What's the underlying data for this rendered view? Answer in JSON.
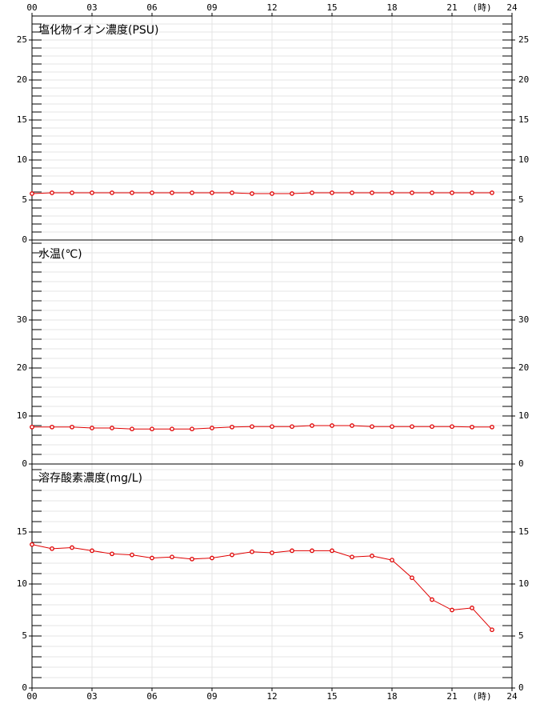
{
  "x_axis": {
    "xlim": [
      0,
      24
    ],
    "unit": "(時)",
    "xticks": [
      {
        "value": 0,
        "label": "00"
      },
      {
        "value": 3,
        "label": "03"
      },
      {
        "value": 6,
        "label": "06"
      },
      {
        "value": 9,
        "label": "09"
      },
      12,
      15,
      18,
      21,
      24
    ]
  },
  "chart_data": [
    {
      "type": "line",
      "title": "塩化物イオン濃度(PSU)",
      "color": "#e00000",
      "x": [
        0,
        1,
        2,
        3,
        4,
        5,
        6,
        7,
        8,
        9,
        10,
        11,
        12,
        13,
        14,
        15,
        16,
        17,
        18,
        19,
        20,
        21,
        22,
        23
      ],
      "values": [
        5.8,
        5.9,
        5.9,
        5.9,
        5.9,
        5.9,
        5.9,
        5.9,
        5.9,
        5.9,
        5.9,
        5.8,
        5.8,
        5.8,
        5.9,
        5.9,
        5.9,
        5.9,
        5.9,
        5.9,
        5.9,
        5.9,
        5.9,
        5.9
      ],
      "ylim": [
        0,
        28
      ],
      "yticks": [
        0,
        5,
        10,
        15,
        20,
        25
      ],
      "minor_tick_step": 1,
      "grid": true
    },
    {
      "type": "line",
      "title": "水温(℃)",
      "color": "#e00000",
      "x": [
        0,
        1,
        2,
        3,
        4,
        5,
        6,
        7,
        8,
        9,
        10,
        11,
        12,
        13,
        14,
        15,
        16,
        17,
        18,
        19,
        20,
        21,
        22,
        23
      ],
      "values": [
        7.7,
        7.7,
        7.7,
        7.5,
        7.5,
        7.3,
        7.3,
        7.3,
        7.3,
        7.5,
        7.7,
        7.8,
        7.8,
        7.8,
        8.0,
        8.0,
        8.0,
        7.8,
        7.8,
        7.8,
        7.8,
        7.8,
        7.7,
        7.7
      ],
      "ylim": [
        0,
        46.67
      ],
      "yticks": [
        0,
        10,
        20,
        30
      ],
      "minor_tick_step": 2,
      "grid": true
    },
    {
      "type": "line",
      "title": "溶存酸素濃度(mg/L)",
      "color": "#e00000",
      "x": [
        0,
        1,
        2,
        3,
        4,
        5,
        6,
        7,
        8,
        9,
        10,
        11,
        12,
        13,
        14,
        15,
        16,
        17,
        18,
        19,
        20,
        21,
        22,
        23
      ],
      "values": [
        13.8,
        13.4,
        13.5,
        13.2,
        12.9,
        12.8,
        12.5,
        12.6,
        12.4,
        12.5,
        12.8,
        13.1,
        13.0,
        13.2,
        13.2,
        13.2,
        12.6,
        12.7,
        12.3,
        10.6,
        8.5,
        7.5,
        7.7,
        5.6
      ],
      "ylim": [
        0,
        21.54
      ],
      "yticks": [
        0,
        5,
        10,
        15
      ],
      "minor_tick_step": 1,
      "grid": true
    }
  ]
}
